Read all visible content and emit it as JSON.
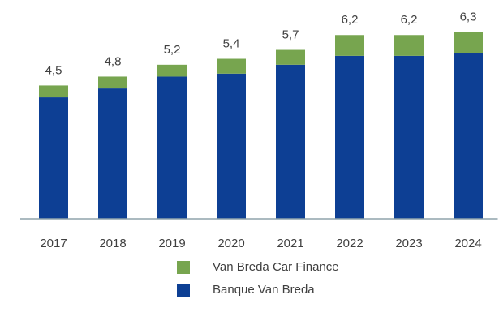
{
  "chart_data": {
    "type": "stacked-bar",
    "categories": [
      "2017",
      "2018",
      "2019",
      "2020",
      "2021",
      "2022",
      "2023",
      "2024"
    ],
    "series": [
      {
        "name": "Banque Van Breda",
        "color": "#0d3f94",
        "values": [
          4.1,
          4.4,
          4.8,
          4.9,
          5.2,
          5.5,
          5.5,
          5.6
        ]
      },
      {
        "name": "Van Breda Car Finance",
        "color": "#77a54f",
        "values": [
          0.4,
          0.4,
          0.4,
          0.5,
          0.5,
          0.7,
          0.7,
          0.7
        ]
      }
    ],
    "totals": [
      4.5,
      4.8,
      5.2,
      5.4,
      5.7,
      6.2,
      6.2,
      6.3
    ],
    "total_labels": [
      "4,5",
      "4,8",
      "5,2",
      "5,4",
      "5,7",
      "6,2",
      "6,2",
      "6,3"
    ],
    "ylim": [
      0,
      7
    ]
  }
}
